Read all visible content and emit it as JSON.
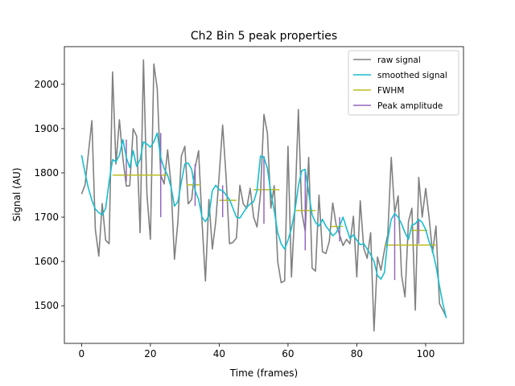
{
  "chart_data": {
    "type": "line",
    "title": "Ch2 Bin 5 peak properties",
    "xlabel": "Time (frames)",
    "ylabel": "Signal (AU)",
    "xlim": [
      -5,
      111
    ],
    "ylim": [
      1415,
      2085
    ],
    "xticks": [
      0,
      20,
      40,
      60,
      80,
      100
    ],
    "yticks": [
      1500,
      1600,
      1700,
      1800,
      1900,
      2000
    ],
    "grid": false,
    "legend_position": "top-right",
    "series": [
      {
        "name": "raw signal",
        "color": "#808080",
        "x": [
          0,
          1,
          2,
          3,
          4,
          5,
          6,
          7,
          8,
          9,
          10,
          11,
          12,
          13,
          14,
          15,
          16,
          17,
          18,
          19,
          20,
          21,
          22,
          23,
          24,
          25,
          26,
          27,
          28,
          29,
          30,
          31,
          32,
          33,
          34,
          35,
          36,
          37,
          38,
          39,
          40,
          41,
          42,
          43,
          44,
          45,
          46,
          47,
          48,
          49,
          50,
          51,
          52,
          53,
          54,
          55,
          56,
          57,
          58,
          59,
          60,
          61,
          62,
          63,
          64,
          65,
          66,
          67,
          68,
          69,
          70,
          71,
          72,
          73,
          74,
          75,
          76,
          77,
          78,
          79,
          80,
          81,
          82,
          83,
          84,
          85,
          86,
          87,
          88,
          89,
          90,
          91,
          92,
          93,
          94,
          95,
          96,
          97,
          98,
          99,
          100,
          101,
          102,
          103,
          104,
          105,
          106
        ],
        "y": [
          1752,
          1773,
          1845,
          1918,
          1672,
          1612,
          1731,
          1648,
          1640,
          2028,
          1820,
          1920,
          1833,
          1770,
          1771,
          1900,
          1883,
          1665,
          2055,
          1752,
          1650,
          2046,
          1990,
          1795,
          1775,
          1852,
          1772,
          1605,
          1690,
          1838,
          1860,
          1730,
          1740,
          1812,
          1850,
          1692,
          1556,
          1740,
          1628,
          1690,
          1795,
          1908,
          1790,
          1640,
          1643,
          1653,
          1772,
          1730,
          1720,
          1765,
          1700,
          1678,
          1752,
          1932,
          1890,
          1720,
          1771,
          1600,
          1552,
          1556,
          1860,
          1565,
          1720,
          1943,
          1712,
          1668,
          1835,
          1585,
          1578,
          1750,
          1622,
          1618,
          1645,
          1732,
          1682,
          1660,
          1636,
          1650,
          1640,
          1702,
          1565,
          1737,
          1630,
          1607,
          1665,
          1443,
          1610,
          1580,
          1625,
          1660,
          1835,
          1710,
          1748,
          1570,
          1520,
          1690,
          1720,
          1490,
          1790,
          1700,
          1765,
          1700,
          1620,
          1680,
          1505,
          1490,
          1475
        ]
      },
      {
        "name": "smoothed signal",
        "color": "#17becf",
        "x": [
          0,
          1,
          2,
          3,
          4,
          5,
          6,
          7,
          8,
          9,
          10,
          11,
          12,
          13,
          14,
          15,
          16,
          17,
          18,
          19,
          20,
          21,
          22,
          23,
          24,
          25,
          26,
          27,
          28,
          29,
          30,
          31,
          32,
          33,
          34,
          35,
          36,
          37,
          38,
          39,
          40,
          41,
          42,
          43,
          44,
          45,
          46,
          47,
          48,
          49,
          50,
          51,
          52,
          53,
          54,
          55,
          56,
          57,
          58,
          59,
          60,
          61,
          62,
          63,
          64,
          65,
          66,
          67,
          68,
          69,
          70,
          71,
          72,
          73,
          74,
          75,
          76,
          77,
          78,
          79,
          80,
          81,
          82,
          83,
          84,
          85,
          86,
          87,
          88,
          89,
          90,
          91,
          92,
          93,
          94,
          95,
          96,
          97,
          98,
          99,
          100,
          101,
          102,
          103,
          104,
          105,
          106
        ],
        "y": [
          1840,
          1800,
          1765,
          1738,
          1718,
          1710,
          1705,
          1720,
          1780,
          1830,
          1825,
          1840,
          1875,
          1835,
          1812,
          1850,
          1815,
          1830,
          1870,
          1865,
          1858,
          1870,
          1890,
          1835,
          1810,
          1795,
          1768,
          1725,
          1735,
          1780,
          1820,
          1822,
          1808,
          1760,
          1740,
          1700,
          1690,
          1703,
          1760,
          1772,
          1762,
          1760,
          1750,
          1740,
          1720,
          1700,
          1698,
          1710,
          1722,
          1730,
          1735,
          1760,
          1838,
          1835,
          1810,
          1755,
          1715,
          1665,
          1640,
          1628,
          1648,
          1675,
          1715,
          1770,
          1805,
          1808,
          1755,
          1705,
          1688,
          1680,
          1695,
          1680,
          1670,
          1658,
          1665,
          1680,
          1700,
          1675,
          1652,
          1660,
          1648,
          1638,
          1640,
          1628,
          1615,
          1600,
          1568,
          1560,
          1575,
          1650,
          1695,
          1708,
          1700,
          1685,
          1665,
          1650,
          1682,
          1685,
          1695,
          1688,
          1672,
          1645,
          1625,
          1590,
          1545,
          1505,
          1472
        ]
      },
      {
        "name": "FWHM",
        "color": "#bcbd22",
        "segments": [
          {
            "x1": 9,
            "x2": 25,
            "y": 1795
          },
          {
            "x1": 30.5,
            "x2": 34.5,
            "y": 1773
          },
          {
            "x1": 40,
            "x2": 45,
            "y": 1738
          },
          {
            "x1": 50,
            "x2": 57.5,
            "y": 1762
          },
          {
            "x1": 62,
            "x2": 68,
            "y": 1715
          },
          {
            "x1": 72.5,
            "x2": 76,
            "y": 1679
          },
          {
            "x1": 88,
            "x2": 103,
            "y": 1637
          },
          {
            "x1": 95.5,
            "x2": 100.5,
            "y": 1670
          }
        ]
      },
      {
        "name": "Peak amplitude",
        "color": "#9467bd",
        "segments": [
          {
            "x": 13,
            "y1": 1780,
            "y2": 1875
          },
          {
            "x": 23,
            "y1": 1700,
            "y2": 1890
          },
          {
            "x": 33,
            "y1": 1725,
            "y2": 1820
          },
          {
            "x": 41,
            "y1": 1700,
            "y2": 1772
          },
          {
            "x": 53,
            "y1": 1685,
            "y2": 1838
          },
          {
            "x": 65,
            "y1": 1625,
            "y2": 1808
          },
          {
            "x": 75,
            "y1": 1645,
            "y2": 1700
          },
          {
            "x": 91,
            "y1": 1558,
            "y2": 1708
          },
          {
            "x": 98,
            "y1": 1640,
            "y2": 1695
          }
        ]
      }
    ]
  }
}
